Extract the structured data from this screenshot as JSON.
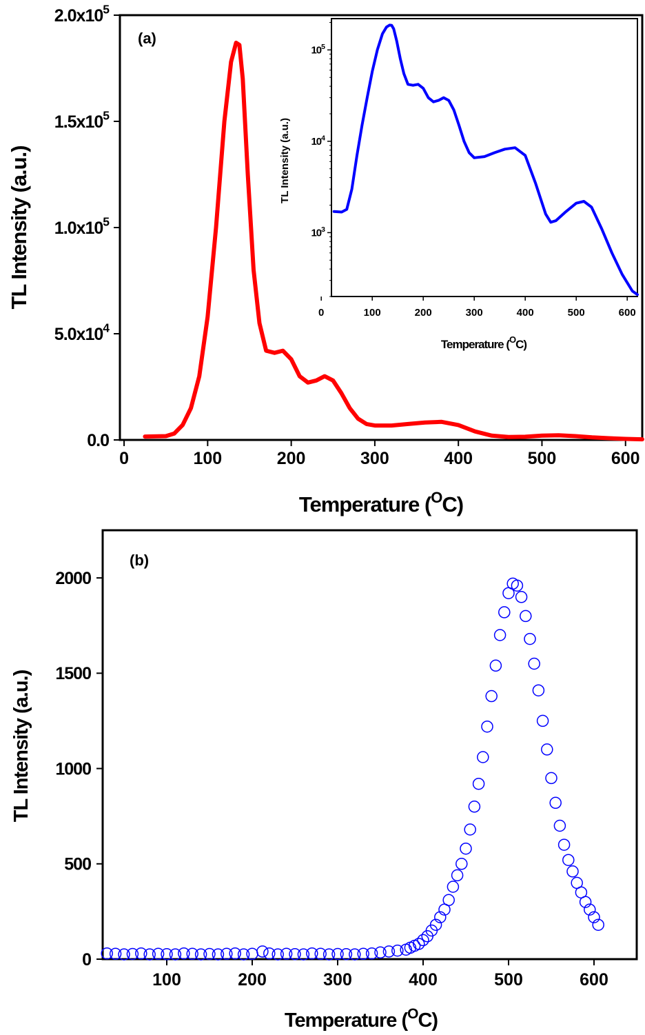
{
  "chart_data": [
    {
      "id": "a",
      "type": "line",
      "panel_label": "(a)",
      "xlabel": "Temperature (",
      "xlabel_sup": "O",
      "xlabel_end": "C)",
      "ylabel": "TL Intensity (a.u.)",
      "xlim": [
        -5,
        620
      ],
      "ylim": [
        0,
        200000
      ],
      "xticks": [
        0,
        100,
        200,
        300,
        400,
        500,
        600
      ],
      "yticks": [
        {
          "value": 0,
          "label": "0.0",
          "sup": ""
        },
        {
          "value": 50000,
          "label": "5.0x10",
          "sup": "4"
        },
        {
          "value": 100000,
          "label": "1.0x10",
          "sup": "5"
        },
        {
          "value": 150000,
          "label": "1.5x10",
          "sup": "5"
        },
        {
          "value": 200000,
          "label": "2.0x10",
          "sup": "5"
        }
      ],
      "color": "#ff0000",
      "series": [
        {
          "x": [
            25,
            50,
            60,
            70,
            80,
            90,
            100,
            110,
            120,
            128,
            134,
            138,
            142,
            148,
            155,
            162,
            170,
            180,
            190,
            200,
            210,
            220,
            230,
            240,
            250,
            260,
            270,
            280,
            290,
            300,
            320,
            340,
            360,
            380,
            400,
            420,
            440,
            460,
            480,
            500,
            520,
            540,
            560,
            580,
            600,
            620
          ],
          "y": [
            1600,
            1800,
            3000,
            7000,
            15000,
            30000,
            58000,
            100000,
            150000,
            178000,
            187000,
            186000,
            170000,
            125000,
            80000,
            55000,
            42000,
            41000,
            42000,
            38000,
            30000,
            27000,
            28000,
            30000,
            28000,
            22000,
            15000,
            10000,
            7500,
            6800,
            6800,
            7500,
            8200,
            8500,
            7000,
            4000,
            2000,
            1400,
            1500,
            2000,
            2200,
            1800,
            1200,
            800,
            500,
            300
          ]
        }
      ]
    },
    {
      "id": "inset",
      "type": "line",
      "xlabel": "Temperature (",
      "xlabel_sup": "O",
      "xlabel_end": "C)",
      "ylabel": "TL Intensity (a.u.)",
      "yscale": "log",
      "xlim": [
        20,
        620
      ],
      "ylim": [
        200,
        220000
      ],
      "xticks": [
        0,
        100,
        200,
        300,
        400,
        500,
        600
      ],
      "yticks": [
        {
          "value": 1000,
          "label": "10",
          "sup": "3"
        },
        {
          "value": 10000,
          "label": "10",
          "sup": "4"
        },
        {
          "value": 100000,
          "label": "10",
          "sup": "5"
        }
      ],
      "color": "#0000ff",
      "series": [
        {
          "x": [
            25,
            40,
            50,
            60,
            70,
            80,
            90,
            100,
            110,
            120,
            128,
            134,
            138,
            142,
            148,
            155,
            162,
            170,
            180,
            190,
            200,
            210,
            220,
            230,
            240,
            250,
            260,
            270,
            280,
            290,
            300,
            320,
            340,
            360,
            380,
            400,
            420,
            440,
            450,
            460,
            480,
            500,
            515,
            530,
            550,
            570,
            590,
            610,
            620
          ],
          "y": [
            1700,
            1680,
            1800,
            3000,
            7000,
            15000,
            30000,
            58000,
            100000,
            150000,
            178000,
            187000,
            186000,
            170000,
            125000,
            80000,
            55000,
            42000,
            41000,
            42000,
            38000,
            30000,
            27000,
            28000,
            30000,
            28000,
            22000,
            15000,
            10000,
            7500,
            6600,
            6800,
            7500,
            8200,
            8500,
            7000,
            3500,
            1600,
            1300,
            1350,
            1700,
            2100,
            2200,
            1900,
            1100,
            600,
            350,
            230,
            210
          ]
        }
      ]
    },
    {
      "id": "b",
      "type": "scatter",
      "panel_label": "(b)",
      "xlabel": "Temperature (",
      "xlabel_sup": "O",
      "xlabel_end": "C)",
      "ylabel": "TL Intensity (a.u.)",
      "xlim": [
        25,
        650
      ],
      "ylim": [
        0,
        2250
      ],
      "xticks": [
        100,
        200,
        300,
        400,
        500,
        600
      ],
      "yticks": [
        {
          "value": 0,
          "label": "0",
          "sup": ""
        },
        {
          "value": 500,
          "label": "500",
          "sup": ""
        },
        {
          "value": 1000,
          "label": "1000",
          "sup": ""
        },
        {
          "value": 1500,
          "label": "1500",
          "sup": ""
        },
        {
          "value": 2000,
          "label": "2000",
          "sup": ""
        }
      ],
      "color": "#0000ff",
      "series": [
        {
          "x": [
            30,
            40,
            50,
            60,
            70,
            80,
            90,
            100,
            110,
            120,
            130,
            140,
            150,
            160,
            170,
            180,
            190,
            200,
            212,
            220,
            230,
            240,
            250,
            260,
            270,
            280,
            290,
            300,
            310,
            320,
            330,
            340,
            350,
            360,
            370,
            380,
            385,
            390,
            395,
            400,
            405,
            410,
            415,
            420,
            425,
            430,
            435,
            440,
            445,
            450,
            455,
            460,
            465,
            470,
            475,
            480,
            485,
            490,
            495,
            500,
            505,
            510,
            515,
            520,
            525,
            530,
            535,
            540,
            545,
            550,
            555,
            560,
            565,
            570,
            575,
            580,
            585,
            590,
            595,
            600,
            605
          ],
          "y": [
            30,
            28,
            25,
            27,
            30,
            25,
            28,
            26,
            25,
            30,
            28,
            25,
            27,
            25,
            28,
            30,
            25,
            28,
            40,
            30,
            25,
            28,
            26,
            25,
            30,
            28,
            25,
            27,
            26,
            25,
            28,
            30,
            35,
            40,
            45,
            50,
            60,
            70,
            80,
            100,
            120,
            150,
            180,
            220,
            260,
            310,
            380,
            440,
            500,
            580,
            680,
            800,
            920,
            1060,
            1220,
            1380,
            1540,
            1700,
            1820,
            1920,
            1970,
            1960,
            1900,
            1800,
            1680,
            1550,
            1410,
            1250,
            1100,
            950,
            820,
            700,
            600,
            520,
            460,
            400,
            350,
            300,
            260,
            220,
            180
          ]
        }
      ]
    }
  ]
}
